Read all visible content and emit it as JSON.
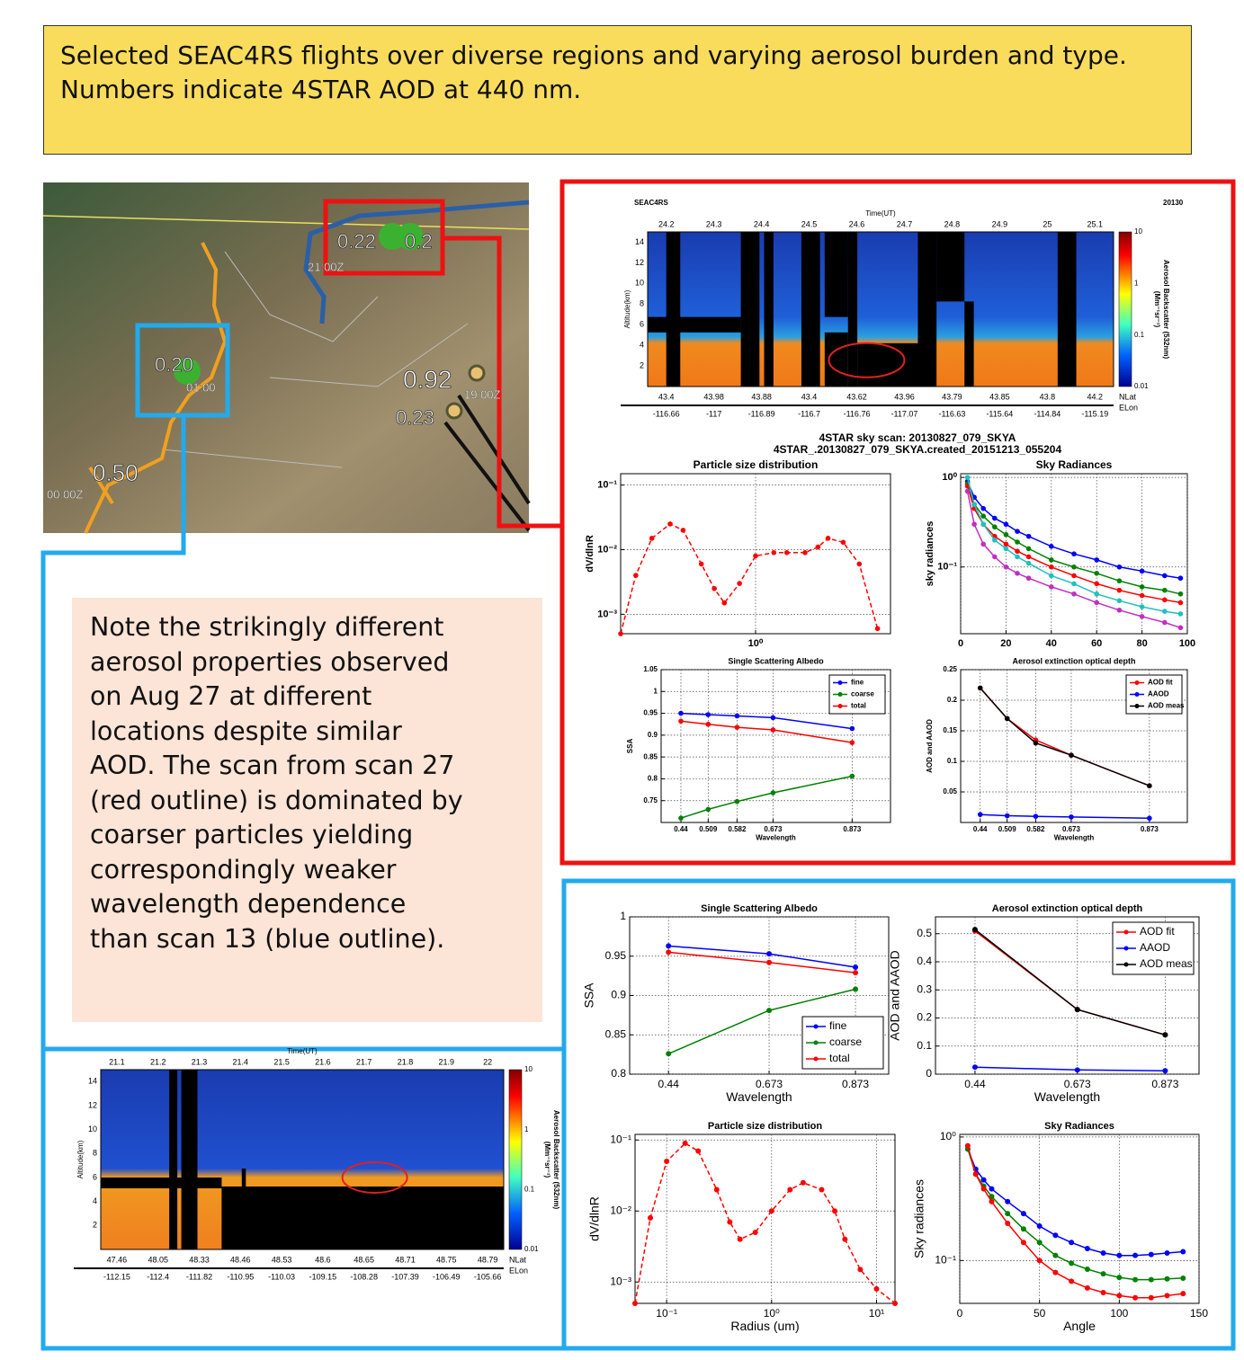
{
  "header": "Selected SEAC4RS flights over diverse regions and varying aerosol burden and type. Numbers indicate 4STAR AOD at 440 nm.",
  "note": [
    "Note the strikingly different",
    "aerosol properties observed",
    "on Aug 27 at different",
    "locations despite similar",
    "AOD.  The scan from scan 27",
    "(red outline) is dominated by",
    "coarser particles yielding",
    "correspondingly weaker",
    "wavelength dependence",
    "than scan 13 (blue outline)."
  ],
  "map": {
    "labels": [
      "0.22",
      "0.2",
      "21:00Z",
      "0.20",
      "01:00",
      "0.92",
      "19:00Z",
      "0.23",
      "0.50",
      "00:00Z"
    ]
  },
  "scan_title": [
    "4STAR sky scan: 20130827_079_SKYA",
    "4STAR_.20130827_079_SKYA.created_20151213_055204"
  ],
  "lidar": {
    "red": {
      "left_label": "SEAC4RS",
      "right_label": "20130",
      "time_label": "Time(UT)",
      "times": [
        24.2,
        24.3,
        24.4,
        24.5,
        24.6,
        24.7,
        24.8,
        24.9,
        25,
        25.1
      ],
      "alt_label": "Altitude(km)",
      "alts": [
        2,
        4,
        6,
        8,
        10,
        12,
        14
      ],
      "nlat": [
        43.4,
        43.98,
        43.88,
        43.4,
        43.62,
        43.96,
        43.79,
        43.85,
        43.8,
        44.2
      ],
      "elon": [
        -116.66,
        -117,
        -116.89,
        -116.7,
        -116.76,
        -117.07,
        -116.63,
        -115.64,
        -114.84,
        -115.19
      ],
      "nlat_label": "NLat",
      "elon_label": "ELon",
      "cbar_label": "Aerosol Backscatter (532nm)",
      "cbar_unit": "(Mm⁻¹sr⁻¹)",
      "cbar_ticks": [
        10,
        1,
        0.1,
        0.01
      ]
    },
    "blue": {
      "time_label": "Time(UT)",
      "times": [
        21.1,
        21.2,
        21.3,
        21.4,
        21.5,
        21.6,
        21.7,
        21.8,
        21.9,
        22
      ],
      "alt_label": "Altitude(km)",
      "alts": [
        2,
        4,
        6,
        8,
        10,
        12,
        14
      ],
      "nlat": [
        47.46,
        48.05,
        48.33,
        48.46,
        48.53,
        48.6,
        48.65,
        48.71,
        48.75,
        48.79
      ],
      "elon": [
        -112.15,
        -112.4,
        -111.82,
        -110.95,
        -110.03,
        -109.15,
        -108.28,
        -107.39,
        -106.49,
        -105.66
      ],
      "nlat_label": "NLat",
      "elon_label": "ELon",
      "cbar_label": "Aerosol Backscatter (532nm)",
      "cbar_unit": "(Mm⁻¹sr⁻¹)",
      "cbar_ticks": [
        10,
        1,
        0.1,
        0.01
      ]
    }
  },
  "chart_data": [
    {
      "type": "line",
      "title": "Particle size distribution",
      "ylabel": "dV/dlnR",
      "xscale": "log",
      "yscale": "log",
      "grid": true,
      "line_style": "dashed",
      "color": "#ff0000",
      "x": [
        0.05,
        0.07,
        0.1,
        0.15,
        0.2,
        0.3,
        0.4,
        0.5,
        0.7,
        1,
        1.5,
        2,
        3,
        4,
        5,
        7,
        10,
        15
      ],
      "values": [
        0.0005,
        0.004,
        0.015,
        0.025,
        0.02,
        0.006,
        0.0025,
        0.0015,
        0.003,
        0.008,
        0.009,
        0.009,
        0.009,
        0.011,
        0.015,
        0.013,
        0.006,
        0.0006
      ],
      "xlim": [
        0.05,
        20
      ],
      "ylim": [
        0.0005,
        0.15
      ],
      "xticks": [
        {
          "value": 1,
          "label": "10⁰"
        }
      ],
      "yticks": [
        {
          "value": 0.1,
          "label": "10⁻¹"
        },
        {
          "value": 0.01,
          "label": "10⁻²"
        },
        {
          "value": 0.001,
          "label": "10⁻³"
        }
      ]
    },
    {
      "type": "line",
      "title": "Sky Radiances",
      "ylabel": "sky radiances",
      "yscale": "log",
      "grid": true,
      "x": [
        3,
        6,
        10,
        15,
        20,
        25,
        30,
        40,
        50,
        60,
        70,
        80,
        90,
        97
      ],
      "series": [
        {
          "color": "#0000ff",
          "values": [
            0.9,
            0.6,
            0.45,
            0.35,
            0.3,
            0.25,
            0.22,
            0.17,
            0.14,
            0.12,
            0.1,
            0.09,
            0.08,
            0.075
          ]
        },
        {
          "color": "#008000",
          "values": [
            0.85,
            0.5,
            0.37,
            0.28,
            0.23,
            0.19,
            0.16,
            0.12,
            0.1,
            0.085,
            0.07,
            0.06,
            0.055,
            0.05
          ]
        },
        {
          "color": "#ff0000",
          "values": [
            0.8,
            0.45,
            0.3,
            0.22,
            0.18,
            0.15,
            0.13,
            0.1,
            0.08,
            0.065,
            0.055,
            0.048,
            0.043,
            0.04
          ]
        },
        {
          "color": "#20c0c0",
          "values": [
            1.0,
            0.5,
            0.3,
            0.2,
            0.16,
            0.13,
            0.11,
            0.08,
            0.065,
            0.05,
            0.042,
            0.036,
            0.032,
            0.03
          ]
        },
        {
          "color": "#c030c0",
          "values": [
            0.7,
            0.3,
            0.18,
            0.13,
            0.1,
            0.085,
            0.075,
            0.06,
            0.05,
            0.04,
            0.033,
            0.028,
            0.024,
            0.021
          ]
        }
      ],
      "xlim": [
        0,
        100
      ],
      "ylim": [
        0.018,
        1.1
      ],
      "xticks": [
        0,
        20,
        40,
        60,
        80,
        100
      ],
      "yticks": [
        {
          "value": 1,
          "label": "10⁰"
        },
        {
          "value": 0.1,
          "label": "10⁻¹"
        }
      ]
    },
    {
      "type": "line",
      "title": "Single Scattering Albedo",
      "xlabel": "Wavelength",
      "ylabel": "SSA",
      "grid": true,
      "legend": "upper right",
      "x": [
        0.44,
        0.509,
        0.582,
        0.673,
        0.873
      ],
      "series": [
        {
          "name": "fine",
          "color": "#0000ff",
          "values": [
            0.95,
            0.947,
            0.944,
            0.94,
            0.915
          ]
        },
        {
          "name": "coarse",
          "color": "#008000",
          "values": [
            0.71,
            0.73,
            0.748,
            0.768,
            0.806
          ]
        },
        {
          "name": "total",
          "color": "#ff0000",
          "values": [
            0.932,
            0.925,
            0.918,
            0.912,
            0.883
          ]
        }
      ],
      "xlim": [
        0.39,
        0.97
      ],
      "ylim": [
        0.7,
        1.05
      ],
      "xticks": [
        0.44,
        0.509,
        0.582,
        0.673,
        0.873
      ],
      "yticks": [
        0.75,
        0.8,
        0.85,
        0.9,
        0.95,
        1,
        1.05
      ]
    },
    {
      "type": "line",
      "title": "Aerosol extinction optical depth",
      "xlabel": "Wavelength",
      "ylabel": "AOD and AAOD",
      "grid": true,
      "legend": "upper right",
      "x": [
        0.44,
        0.509,
        0.582,
        0.673,
        0.873
      ],
      "series": [
        {
          "name": "AOD fit",
          "color": "#ff0000",
          "values": [
            0.22,
            0.17,
            0.135,
            0.11,
            0.06
          ]
        },
        {
          "name": "AAOD",
          "color": "#0000ff",
          "values": [
            0.013,
            0.011,
            0.01,
            0.009,
            0.007
          ]
        },
        {
          "name": "AOD meas",
          "color": "#000000",
          "values": [
            0.22,
            0.17,
            0.13,
            0.11,
            0.06
          ]
        }
      ],
      "xlim": [
        0.39,
        0.97
      ],
      "ylim": [
        0,
        0.25
      ],
      "xticks": [
        0.44,
        0.509,
        0.582,
        0.673,
        0.873
      ],
      "yticks": [
        0.05,
        0.1,
        0.15,
        0.2,
        0.25
      ]
    },
    {
      "type": "line",
      "title": "Single Scattering Albedo",
      "xlabel": "Wavelength",
      "ylabel": "SSA",
      "grid": true,
      "legend": "lower right",
      "x": [
        0.44,
        0.673,
        0.873
      ],
      "series": [
        {
          "name": "fine",
          "color": "#0000ff",
          "values": [
            0.963,
            0.953,
            0.936
          ]
        },
        {
          "name": "coarse",
          "color": "#008000",
          "values": [
            0.826,
            0.881,
            0.908
          ]
        },
        {
          "name": "total",
          "color": "#ff0000",
          "values": [
            0.955,
            0.942,
            0.929
          ]
        }
      ],
      "xlim": [
        0.35,
        0.95
      ],
      "ylim": [
        0.8,
        1
      ],
      "xticks": [
        0.44,
        0.673,
        0.873
      ],
      "yticks": [
        0.8,
        0.85,
        0.9,
        0.95,
        1
      ]
    },
    {
      "type": "line",
      "title": "Aerosol extinction optical depth",
      "xlabel": "Wavelength",
      "ylabel": "AOD and AAOD",
      "grid": true,
      "legend": "upper right",
      "x": [
        0.44,
        0.673,
        0.873
      ],
      "series": [
        {
          "name": "AOD fit",
          "color": "#ff0000",
          "values": [
            0.51,
            0.23,
            0.14
          ]
        },
        {
          "name": "AAOD",
          "color": "#0000ff",
          "values": [
            0.025,
            0.015,
            0.012
          ]
        },
        {
          "name": "AOD meas",
          "color": "#000000",
          "values": [
            0.515,
            0.23,
            0.14
          ]
        }
      ],
      "xlim": [
        0.35,
        0.95
      ],
      "ylim": [
        0,
        0.56
      ],
      "xticks": [
        0.44,
        0.673,
        0.873
      ],
      "yticks": [
        0,
        0.1,
        0.2,
        0.3,
        0.4,
        0.5
      ]
    },
    {
      "type": "line",
      "title": "Particle size distribution",
      "xlabel": "Radius (um)",
      "ylabel": "dV/dlnR",
      "xscale": "log",
      "yscale": "log",
      "grid": true,
      "line_style": "dashed",
      "color": "#ff0000",
      "x": [
        0.05,
        0.07,
        0.1,
        0.15,
        0.2,
        0.3,
        0.4,
        0.5,
        0.7,
        1,
        1.5,
        2,
        3,
        4,
        5,
        7,
        10,
        15
      ],
      "values": [
        0.0005,
        0.008,
        0.05,
        0.09,
        0.07,
        0.02,
        0.007,
        0.004,
        0.005,
        0.01,
        0.02,
        0.025,
        0.02,
        0.01,
        0.004,
        0.0015,
        0.0008,
        0.0005
      ],
      "xlim": [
        0.05,
        15
      ],
      "ylim": [
        0.0005,
        0.12
      ],
      "xticks": [
        {
          "value": 0.1,
          "label": "10⁻¹"
        },
        {
          "value": 1,
          "label": "10⁰"
        },
        {
          "value": 10,
          "label": "10¹"
        }
      ],
      "yticks": [
        {
          "value": 0.1,
          "label": "10⁻¹"
        },
        {
          "value": 0.01,
          "label": "10⁻²"
        },
        {
          "value": 0.001,
          "label": "10⁻³"
        }
      ]
    },
    {
      "type": "line",
      "title": "Sky Radiances",
      "xlabel": "Angle",
      "ylabel": "Sky radiances",
      "yscale": "log",
      "grid": true,
      "x": [
        5,
        10,
        15,
        20,
        30,
        40,
        50,
        60,
        70,
        80,
        90,
        100,
        110,
        120,
        130,
        140
      ],
      "series": [
        {
          "color": "#0000ff",
          "values": [
            0.8,
            0.55,
            0.45,
            0.38,
            0.3,
            0.24,
            0.19,
            0.16,
            0.14,
            0.125,
            0.115,
            0.11,
            0.11,
            0.112,
            0.115,
            0.118
          ]
        },
        {
          "color": "#008000",
          "values": [
            0.8,
            0.5,
            0.4,
            0.33,
            0.24,
            0.18,
            0.14,
            0.11,
            0.095,
            0.085,
            0.078,
            0.073,
            0.07,
            0.07,
            0.071,
            0.072
          ]
        },
        {
          "color": "#ff0000",
          "values": [
            0.85,
            0.5,
            0.38,
            0.3,
            0.2,
            0.14,
            0.1,
            0.08,
            0.068,
            0.06,
            0.055,
            0.052,
            0.05,
            0.05,
            0.052,
            0.054
          ]
        }
      ],
      "xlim": [
        0,
        150
      ],
      "ylim": [
        0.045,
        1.05
      ],
      "xticks": [
        0,
        50,
        100,
        150
      ],
      "yticks": [
        {
          "value": 1,
          "label": "10⁰"
        },
        {
          "value": 0.1,
          "label": "10⁻¹"
        }
      ]
    }
  ]
}
